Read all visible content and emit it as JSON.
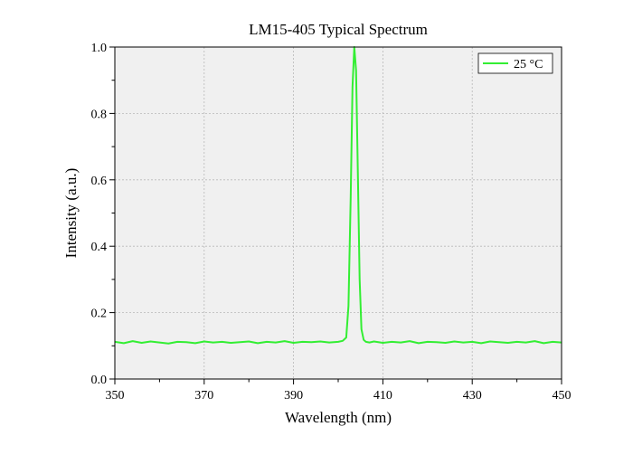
{
  "chart_data": {
    "type": "line",
    "title": "LM15-405 Typical Spectrum",
    "xlabel": "Wavelength (nm)",
    "ylabel": "Intensity (a.u.)",
    "xlim": [
      350,
      450
    ],
    "ylim": [
      0.0,
      1.0
    ],
    "x_ticks": [
      350,
      370,
      390,
      410,
      430,
      450
    ],
    "x_tick_labels": [
      "350",
      "370",
      "390",
      "410",
      "430",
      "450"
    ],
    "y_ticks": [
      0.0,
      0.2,
      0.4,
      0.6,
      0.8,
      1.0
    ],
    "y_tick_labels": [
      "0.0",
      "0.2",
      "0.4",
      "0.6",
      "0.8",
      "1.0"
    ],
    "grid": true,
    "background_color": "#f0f0f0",
    "legend": {
      "position": "top-right",
      "entries": [
        "25 °C"
      ]
    },
    "series": [
      {
        "name": "25 °C",
        "color": "#33ee33",
        "x": [
          350,
          352,
          354,
          356,
          358,
          360,
          362,
          364,
          366,
          368,
          370,
          372,
          374,
          376,
          378,
          380,
          382,
          384,
          386,
          388,
          390,
          392,
          394,
          396,
          398,
          400,
          401,
          401.8,
          402.3,
          402.8,
          403.2,
          403.6,
          404.0,
          404.4,
          404.8,
          405.2,
          405.7,
          406.2,
          407,
          408,
          410,
          412,
          414,
          416,
          418,
          420,
          422,
          424,
          426,
          428,
          430,
          432,
          434,
          436,
          438,
          440,
          442,
          444,
          446,
          448,
          450
        ],
        "y": [
          0.112,
          0.108,
          0.114,
          0.109,
          0.113,
          0.11,
          0.107,
          0.112,
          0.111,
          0.108,
          0.113,
          0.11,
          0.112,
          0.109,
          0.111,
          0.113,
          0.108,
          0.112,
          0.11,
          0.114,
          0.109,
          0.112,
          0.111,
          0.113,
          0.11,
          0.112,
          0.115,
          0.125,
          0.22,
          0.55,
          0.88,
          1.0,
          0.93,
          0.62,
          0.3,
          0.15,
          0.118,
          0.112,
          0.11,
          0.113,
          0.109,
          0.112,
          0.11,
          0.114,
          0.108,
          0.112,
          0.111,
          0.109,
          0.113,
          0.11,
          0.112,
          0.108,
          0.113,
          0.111,
          0.109,
          0.112,
          0.11,
          0.114,
          0.108,
          0.112,
          0.11
        ]
      }
    ]
  }
}
